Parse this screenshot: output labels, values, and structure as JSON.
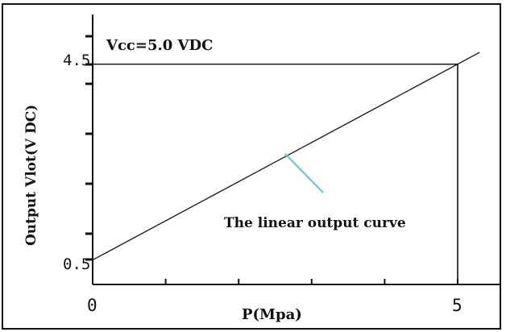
{
  "chart_data": {
    "type": "line",
    "title": "",
    "supply_label": "Vcc=5.0 VDC",
    "xlabel": "P(Mpa)",
    "ylabel": "Output Vlot(V DC)",
    "annotation": "The linear output curve",
    "x_ticks": [
      "0",
      "5"
    ],
    "y_ticks": [
      "0.5",
      "4.5"
    ],
    "xlim": [
      0,
      5.5
    ],
    "ylim": [
      0,
      5.5
    ],
    "grid": false,
    "series": [
      {
        "x": [
          0,
          5.3
        ],
        "y": [
          0.5,
          4.74
        ]
      }
    ],
    "reference_point": {
      "x": 5,
      "y": 4.5
    },
    "colors": {
      "line": "#222222",
      "annotation_pointer": "#6cc6cf",
      "frame": "#111111"
    }
  }
}
